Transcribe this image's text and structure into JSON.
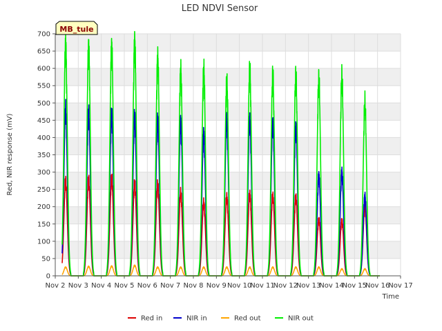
{
  "chart_data": {
    "type": "line",
    "title": "LED NDVI Sensor",
    "xlabel": "Time",
    "ylabel": "Red, NIR response (mV)",
    "site_label": "MB_tule",
    "ylim": [
      0,
      700
    ],
    "yticks": [
      0,
      50,
      100,
      150,
      200,
      250,
      300,
      350,
      400,
      450,
      500,
      550,
      600,
      650,
      700
    ],
    "xlim": [
      2,
      17
    ],
    "xticks": [
      {
        "x": 2,
        "label": "Nov 2"
      },
      {
        "x": 3,
        "label": "Nov 3"
      },
      {
        "x": 4,
        "label": "Nov 4"
      },
      {
        "x": 5,
        "label": "Nov 5"
      },
      {
        "x": 6,
        "label": "Nov 6"
      },
      {
        "x": 7,
        "label": "Nov 7"
      },
      {
        "x": 8,
        "label": "Nov 8"
      },
      {
        "x": 9,
        "label": "Nov 9"
      },
      {
        "x": 10,
        "label": "Nov 10"
      },
      {
        "x": 11,
        "label": "Nov 11"
      },
      {
        "x": 12,
        "label": "Nov 12"
      },
      {
        "x": 13,
        "label": "Nov 13"
      },
      {
        "x": 14,
        "label": "Nov 14"
      },
      {
        "x": 15,
        "label": "Nov 15"
      },
      {
        "x": 16,
        "label": "Nov 16"
      },
      {
        "x": 17,
        "label": "Nov 17"
      }
    ],
    "grid": true,
    "legend_position": "bottom",
    "day_centers": [
      2.45,
      3.45,
      4.45,
      5.45,
      6.45,
      7.45,
      8.45,
      9.45,
      10.45,
      11.45,
      12.45,
      13.45,
      14.45,
      15.45
    ],
    "series": [
      {
        "name": "Red in",
        "color": "#dd0000",
        "peaks": [
          272,
          275,
          280,
          265,
          262,
          240,
          212,
          228,
          237,
          232,
          228,
          163,
          160,
          200
        ]
      },
      {
        "name": "NIR in",
        "color": "#0000cc",
        "peaks": [
          480,
          470,
          467,
          460,
          450,
          445,
          410,
          450,
          450,
          440,
          430,
          290,
          300,
          230
        ]
      },
      {
        "name": "Red out",
        "color": "#ffa500",
        "peaks": [
          25,
          27,
          28,
          30,
          25,
          25,
          25,
          25,
          25,
          25,
          25,
          25,
          20,
          20
        ]
      },
      {
        "name": "NIR out",
        "color": "#00ee00",
        "peaks": [
          668,
          660,
          662,
          675,
          628,
          592,
          595,
          560,
          595,
          577,
          575,
          565,
          572,
          498
        ]
      }
    ]
  }
}
